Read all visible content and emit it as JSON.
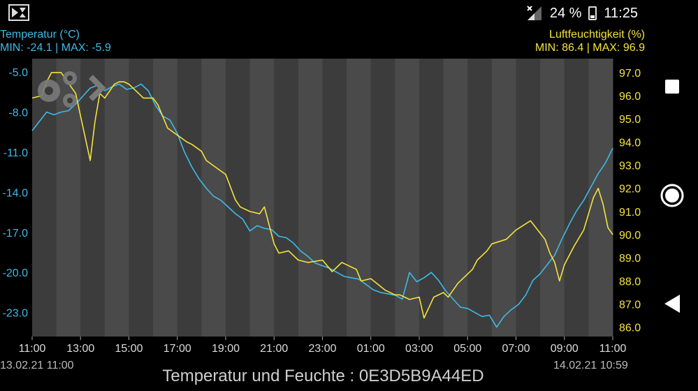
{
  "status_bar": {
    "battery_percent": "24 %",
    "time": "11:25"
  },
  "legend": {
    "left_title": "Temperatur (°C)",
    "left_minmax": "MIN: -24.1 | MAX: -5.9",
    "right_title": "Luftfeuchtigkeit (%)",
    "right_minmax": "MIN: 86.4 | MAX: 96.9"
  },
  "dates": {
    "start": "13.02.21  11:00",
    "end": "14.02.21  10:59"
  },
  "footer": {
    "title": "Temperatur und Feuchte : 0E3D5B9A44ED"
  },
  "colors": {
    "temperature": "#3dbbe8",
    "humidity": "#f5e33b",
    "band_dark": "#3c3c3c",
    "band_light": "#4a4a4a"
  },
  "icons": [
    "settings-gears-icon",
    "chevron-right-icon",
    "stop-square-icon",
    "home-circle-icon",
    "back-triangle-icon"
  ],
  "chart_data": {
    "type": "line",
    "x_ticks": [
      "11:00",
      "13:00",
      "15:00",
      "17:00",
      "19:00",
      "21:00",
      "23:00",
      "01:00",
      "03:00",
      "05:00",
      "07:00",
      "09:00",
      "11:00"
    ],
    "y_left_ticks": [
      "-5.0",
      "-8.0",
      "-11.0",
      "-14.0",
      "-17.0",
      "-20.0",
      "-23.0"
    ],
    "y_right_ticks": [
      "97.0",
      "96.0",
      "95.0",
      "94.0",
      "93.0",
      "92.0",
      "91.0",
      "90.0",
      "89.0",
      "88.0",
      "87.0",
      "86.0"
    ],
    "y_left_range": [
      -24.8,
      -4.0
    ],
    "y_right_range": [
      85.6,
      97.6
    ],
    "series": [
      {
        "name": "Temperatur (°C)",
        "axis": "left",
        "x_hours": [
          0,
          0.3,
          0.6,
          0.9,
          1.2,
          1.5,
          1.8,
          2.1,
          2.4,
          2.7,
          3.0,
          3.3,
          3.6,
          3.9,
          4.2,
          4.5,
          4.8,
          5.1,
          5.4,
          5.7,
          6.0,
          6.3,
          6.6,
          6.9,
          7.2,
          7.5,
          7.8,
          8.1,
          8.4,
          8.7,
          9.0,
          9.3,
          9.6,
          9.9,
          10.2,
          10.5,
          10.8,
          11.1,
          11.4,
          11.7,
          12.0,
          12.3,
          12.6,
          12.9,
          13.2,
          13.5,
          13.8,
          14.1,
          14.4,
          14.7,
          15.0,
          15.3,
          15.6,
          15.9,
          16.2,
          16.5,
          16.8,
          17.1,
          17.4,
          17.7,
          18.0,
          18.3,
          18.6,
          18.9,
          19.2,
          19.5,
          19.8,
          20.1,
          20.4,
          20.7,
          21.0,
          21.3,
          21.6,
          21.9,
          22.2,
          22.5,
          22.8,
          23.1,
          23.4,
          23.7,
          24.0
        ],
        "values": [
          -9.4,
          -8.7,
          -8.0,
          -8.2,
          -8.0,
          -7.9,
          -7.4,
          -6.8,
          -6.2,
          -6.0,
          -6.4,
          -6.1,
          -5.9,
          -6.3,
          -6.2,
          -5.9,
          -6.4,
          -7.5,
          -8.3,
          -8.6,
          -9.6,
          -11.0,
          -12.1,
          -13.0,
          -13.7,
          -14.3,
          -14.6,
          -15.1,
          -15.6,
          -16.0,
          -16.9,
          -16.5,
          -16.7,
          -16.8,
          -17.3,
          -17.4,
          -17.8,
          -18.4,
          -18.8,
          -19.3,
          -19.5,
          -19.7,
          -20.0,
          -20.3,
          -20.4,
          -20.5,
          -20.9,
          -21.3,
          -21.5,
          -21.6,
          -21.7,
          -22.0,
          -20.0,
          -20.7,
          -20.4,
          -20.0,
          -20.6,
          -21.4,
          -22.0,
          -22.6,
          -22.7,
          -23.0,
          -23.3,
          -23.2,
          -24.1,
          -23.3,
          -22.8,
          -22.4,
          -21.7,
          -20.6,
          -20.1,
          -19.4,
          -18.7,
          -17.5,
          -16.4,
          -15.4,
          -14.6,
          -13.6,
          -12.6,
          -11.8,
          -10.7
        ]
      },
      {
        "name": "Luftfeuchtigkeit (%)",
        "axis": "right",
        "x_hours": [
          0,
          0.4,
          0.6,
          0.8,
          1.0,
          1.2,
          1.8,
          2.4,
          2.6,
          2.8,
          3.0,
          3.4,
          3.6,
          3.8,
          4.0,
          4.2,
          4.6,
          5.0,
          5.2,
          5.4,
          5.6,
          6.4,
          6.6,
          7.0,
          7.2,
          7.6,
          8.0,
          8.4,
          8.6,
          9.0,
          9.4,
          9.6,
          10.0,
          10.2,
          10.6,
          11.0,
          11.4,
          12.0,
          12.4,
          12.6,
          12.8,
          13.0,
          13.4,
          13.6,
          14.0,
          14.6,
          15.0,
          15.2,
          15.6,
          16.0,
          16.2,
          16.6,
          17.0,
          17.2,
          17.6,
          18.2,
          18.4,
          18.8,
          19.0,
          19.6,
          20.0,
          20.6,
          21.2,
          21.4,
          21.6,
          21.8,
          22.0,
          22.4,
          22.8,
          23.0,
          23.2,
          23.4,
          23.6,
          23.8,
          24.0
        ],
        "values": [
          95.9,
          96.0,
          96.6,
          97.0,
          97.0,
          97.0,
          96.1,
          93.2,
          94.9,
          96.1,
          95.9,
          96.5,
          96.6,
          96.6,
          96.5,
          96.3,
          95.9,
          95.9,
          95.6,
          95.1,
          94.6,
          94.0,
          93.9,
          93.6,
          93.2,
          92.9,
          92.6,
          91.5,
          91.2,
          91.0,
          90.9,
          91.2,
          89.6,
          89.2,
          89.3,
          88.9,
          88.8,
          88.9,
          88.4,
          88.6,
          88.8,
          88.7,
          88.5,
          88.0,
          88.1,
          87.6,
          87.4,
          87.4,
          87.2,
          87.3,
          86.4,
          87.3,
          87.5,
          87.3,
          87.9,
          88.5,
          88.9,
          89.3,
          89.6,
          89.8,
          90.2,
          90.6,
          89.8,
          89.2,
          88.8,
          88.0,
          88.7,
          89.5,
          90.2,
          90.9,
          91.6,
          92.0,
          91.3,
          90.3,
          90.0
        ]
      }
    ],
    "grid": "alternating-vertical-bands",
    "legend": "top-left and top-right"
  }
}
